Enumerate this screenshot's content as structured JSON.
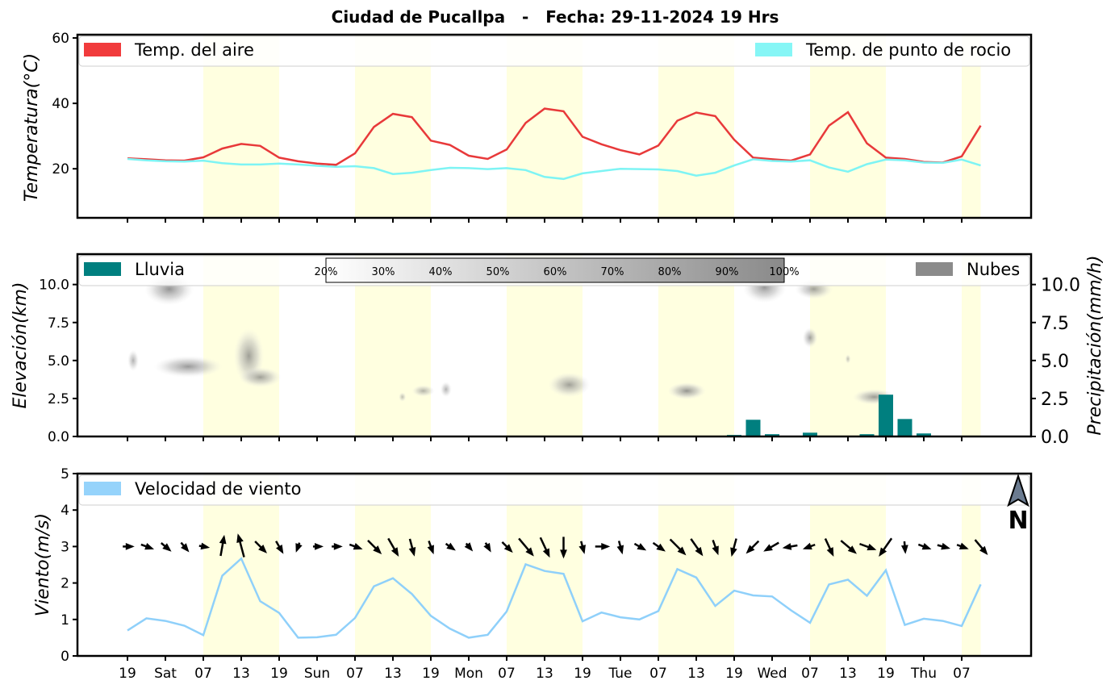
{
  "title": "Ciudad de Pucallpa   -   Fecha: 29-11-2024 19 Hrs",
  "chart_data": [
    {
      "type": "line",
      "name": "temperature",
      "ylabel": "Temperatura(°C)",
      "ylim": [
        5,
        61
      ],
      "yticks": [
        20,
        40,
        60
      ],
      "series": [
        {
          "name": "Temp. del aire",
          "color": "#e8393a",
          "values": [
            23.2,
            22.9,
            22.6,
            22.5,
            23.5,
            26.2,
            27.6,
            27.0,
            23.4,
            22.3,
            21.6,
            21.2,
            24.7,
            32.8,
            36.8,
            35.8,
            28.6,
            27.3,
            24.0,
            23.0,
            25.9,
            34.0,
            38.4,
            37.6,
            29.8,
            27.5,
            25.7,
            24.4,
            27.1,
            34.7,
            37.2,
            36.1,
            28.9,
            23.4,
            22.9,
            22.5,
            24.4,
            33.2,
            37.3,
            27.8,
            23.4,
            23.0,
            22.1,
            21.9,
            23.8,
            33.2
          ]
        },
        {
          "name": "Temp. de punto de rocio",
          "color": "#7ef4f4",
          "values": [
            23.0,
            22.6,
            22.3,
            22.2,
            22.5,
            21.7,
            21.3,
            21.3,
            21.6,
            21.3,
            20.9,
            20.6,
            20.8,
            20.2,
            18.4,
            18.8,
            19.6,
            20.3,
            20.2,
            19.9,
            20.2,
            19.6,
            17.5,
            16.9,
            18.6,
            19.3,
            20.0,
            19.9,
            19.8,
            19.3,
            17.9,
            18.8,
            21.0,
            22.9,
            22.4,
            22.2,
            22.6,
            20.4,
            19.1,
            21.4,
            22.8,
            22.6,
            21.9,
            21.8,
            22.8,
            21.0
          ]
        }
      ]
    },
    {
      "type": "bar",
      "name": "precipitation-clouds",
      "ylabel_left": "Elevación(km)",
      "ylabel_right": "Precipitación(mm/h)",
      "ylim": [
        0,
        12
      ],
      "yticks_left": [
        "0.0",
        "2.5",
        "5.0",
        "7.5",
        "10.0"
      ],
      "yticks_right": [
        "0.0",
        "2.5",
        "5.0",
        "7.5",
        "10.0"
      ],
      "series": [
        {
          "name": "Lluvia",
          "color": "#007f7f",
          "values": [
            0,
            0,
            0,
            0,
            0,
            0,
            0,
            0,
            0,
            0,
            0,
            0,
            0,
            0,
            0,
            0,
            0,
            0,
            0,
            0,
            0,
            0,
            0,
            0,
            0,
            0,
            0.05,
            0,
            0,
            0,
            0,
            0,
            0.1,
            1.1,
            0.15,
            0,
            0.25,
            0,
            0,
            0.15,
            2.75,
            1.15,
            0.2,
            0,
            0,
            0
          ]
        },
        {
          "name": "Nubes",
          "color": "#8b8b8b"
        }
      ],
      "cloud_scale_labels": [
        "20%",
        "30%",
        "40%",
        "50%",
        "60%",
        "70%",
        "80%",
        "90%",
        "100%"
      ],
      "clouds": [
        {
          "x": 2.2,
          "elev": 9.7,
          "w": 2.6,
          "h": 1.7,
          "density": 0.55
        },
        {
          "x": 0.3,
          "elev": 5.0,
          "w": 0.6,
          "h": 1.0,
          "density": 0.3
        },
        {
          "x": 3.2,
          "elev": 4.6,
          "w": 3.6,
          "h": 1.0,
          "density": 0.5
        },
        {
          "x": 6.4,
          "elev": 5.3,
          "w": 1.6,
          "h": 3.2,
          "density": 0.45
        },
        {
          "x": 7.0,
          "elev": 3.9,
          "w": 2.2,
          "h": 0.9,
          "density": 0.45
        },
        {
          "x": 14.5,
          "elev": 2.6,
          "w": 0.4,
          "h": 0.2,
          "density": 0.2
        },
        {
          "x": 15.6,
          "elev": 3.0,
          "w": 1.2,
          "h": 0.35,
          "density": 0.3
        },
        {
          "x": 16.8,
          "elev": 3.1,
          "w": 0.6,
          "h": 0.6,
          "density": 0.3
        },
        {
          "x": 23.3,
          "elev": 3.4,
          "w": 2.2,
          "h": 1.2,
          "density": 0.45
        },
        {
          "x": 29.5,
          "elev": 3.0,
          "w": 2.0,
          "h": 0.7,
          "density": 0.55
        },
        {
          "x": 33.6,
          "elev": 9.8,
          "w": 2.3,
          "h": 1.6,
          "density": 0.5
        },
        {
          "x": 36.2,
          "elev": 9.7,
          "w": 2.0,
          "h": 0.9,
          "density": 0.45
        },
        {
          "x": 36.0,
          "elev": 6.5,
          "w": 0.8,
          "h": 0.9,
          "density": 0.45
        },
        {
          "x": 38.0,
          "elev": 5.1,
          "w": 0.3,
          "h": 0.2,
          "density": 0.2
        },
        {
          "x": 39.4,
          "elev": 2.6,
          "w": 2.3,
          "h": 0.6,
          "density": 0.5
        }
      ]
    },
    {
      "type": "line",
      "name": "wind",
      "ylabel": "Viento(m/s)",
      "ylim": [
        0,
        5
      ],
      "yticks": [
        0,
        1,
        2,
        3,
        4,
        5
      ],
      "series": [
        {
          "name": "Velocidad de viento",
          "color": "#8fd0fa",
          "values": [
            0.7,
            1.03,
            0.96,
            0.83,
            0.57,
            2.2,
            2.67,
            1.5,
            1.18,
            0.5,
            0.51,
            0.58,
            1.04,
            1.91,
            2.13,
            1.7,
            1.1,
            0.75,
            0.5,
            0.58,
            1.22,
            2.51,
            2.33,
            2.25,
            0.95,
            1.19,
            1.06,
            1.0,
            1.23,
            2.38,
            2.15,
            1.37,
            1.79,
            1.66,
            1.63,
            1.25,
            0.91,
            1.96,
            2.09,
            1.65,
            2.35,
            0.85,
            1.02,
            0.96,
            0.82,
            1.96
          ]
        }
      ],
      "wind_dir_deg": [
        90,
        110,
        130,
        140,
        100,
        10,
        345,
        135,
        150,
        200,
        90,
        90,
        110,
        135,
        150,
        165,
        160,
        125,
        140,
        150,
        135,
        140,
        155,
        180,
        165,
        90,
        165,
        120,
        125,
        135,
        145,
        160,
        195,
        225,
        240,
        260,
        250,
        155,
        130,
        110,
        215,
        175,
        110,
        105,
        110,
        140
      ],
      "north_label": "N"
    }
  ],
  "x_axis": {
    "tick_labels": [
      "19",
      "Sat",
      "07",
      "13",
      "19",
      "Sun",
      "07",
      "13",
      "19",
      "Mon",
      "07",
      "13",
      "19",
      "Tue",
      "07",
      "13",
      "19",
      "Wed",
      "07",
      "13",
      "19",
      "Thu",
      "07"
    ],
    "tick_hours_index": [
      0,
      2,
      4,
      6,
      8,
      10,
      12,
      14,
      16,
      18,
      20,
      22,
      24,
      26,
      28,
      30,
      32,
      34,
      36,
      38,
      40,
      42,
      44
    ]
  },
  "daylight_bands": [
    [
      4,
      8
    ],
    [
      12,
      16
    ],
    [
      20,
      24
    ],
    [
      28,
      32
    ],
    [
      36,
      40
    ],
    [
      44,
      45
    ]
  ]
}
